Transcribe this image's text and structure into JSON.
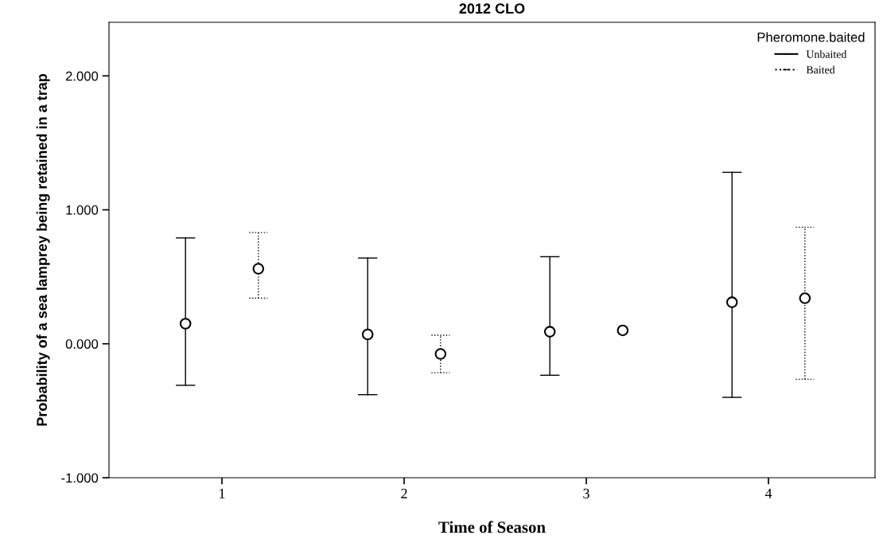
{
  "chart_data": {
    "type": "scatter",
    "title": "2012 CLO",
    "xlabel": "Time of Season",
    "ylabel": "Probability of a sea lamprey being retained in a trap",
    "legend_title": "Pheromone.baited",
    "categories": [
      "1",
      "2",
      "3",
      "4"
    ],
    "series": [
      {
        "name": "Unbaited",
        "color": "#000000",
        "line_style": "solid",
        "values": [
          0.15,
          0.07,
          0.09,
          0.31
        ],
        "errors": [
          [
            -0.31,
            0.79
          ],
          [
            -0.38,
            0.64
          ],
          [
            -0.235,
            0.65
          ],
          [
            -0.4,
            1.28
          ]
        ]
      },
      {
        "name": "Baited",
        "color": "#000000",
        "line_style": "dotted",
        "values": [
          0.56,
          -0.076,
          0.1,
          0.34
        ],
        "errors": [
          [
            0.34,
            0.83
          ],
          0.14,
          null,
          [
            -0.265,
            0.87
          ]
        ]
      }
    ],
    "marker": "circle",
    "ylim": [
      -1,
      2.4
    ],
    "yticks": [
      {
        "value": -1,
        "label": "-1.000"
      },
      {
        "value": 0,
        "label": "0.000"
      },
      {
        "value": 1,
        "label": "1.000"
      },
      {
        "value": 2,
        "label": "2.000"
      }
    ],
    "grid": false,
    "legend": "top right"
  }
}
